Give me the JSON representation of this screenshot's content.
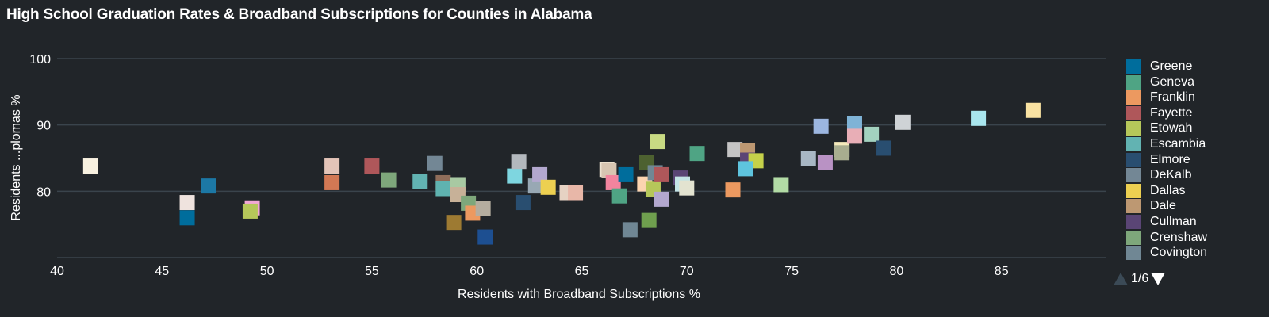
{
  "title": "High School Graduation Rates & Broadband Subscriptions for Counties in Alabama",
  "legend": {
    "items": [
      {
        "label": "Greene",
        "color": "#006d9c"
      },
      {
        "label": "Geneva",
        "color": "#4fa484"
      },
      {
        "label": "Franklin",
        "color": "#ec9960"
      },
      {
        "label": "Fayette",
        "color": "#af575a"
      },
      {
        "label": "Etowah",
        "color": "#b6c75a"
      },
      {
        "label": "Escambia",
        "color": "#62b3b2"
      },
      {
        "label": "Elmore",
        "color": "#294e70"
      },
      {
        "label": "DeKalb",
        "color": "#738795"
      },
      {
        "label": "Dallas",
        "color": "#edd051"
      },
      {
        "label": "Dale",
        "color": "#bd9872"
      },
      {
        "label": "Cullman",
        "color": "#5a4575"
      },
      {
        "label": "Crenshaw",
        "color": "#7ea77b"
      },
      {
        "label": "Covington",
        "color": "#708794"
      }
    ],
    "page_indicator": "1/6"
  },
  "chart_data": {
    "type": "scatter",
    "title": "High School Graduation Rates & Broadband Subscriptions for Counties in Alabama",
    "xlabel": "Residents with Broadband Subscriptions %",
    "ylabel": "Residents ...plomas %",
    "xlim": [
      40,
      90
    ],
    "ylim": [
      70,
      100
    ],
    "xticks": [
      "40",
      "45",
      "50",
      "55",
      "60",
      "65",
      "70",
      "75",
      "80",
      "85"
    ],
    "yticks": [
      "80",
      "90",
      "100"
    ],
    "grid": true,
    "legend_position": "right",
    "points": [
      {
        "x": 41.6,
        "y": 83.8,
        "color": "#f8f1e0"
      },
      {
        "x": 46.2,
        "y": 78.3,
        "color": "#efe3de"
      },
      {
        "x": 46.2,
        "y": 76.0,
        "color": "#006d9c"
      },
      {
        "x": 47.2,
        "y": 80.8,
        "color": "#1c78a5"
      },
      {
        "x": 49.3,
        "y": 77.5,
        "color": "#f2a7d5"
      },
      {
        "x": 49.2,
        "y": 77.0,
        "color": "#b6c75a"
      },
      {
        "x": 53.1,
        "y": 83.8,
        "color": "#e3c4b8"
      },
      {
        "x": 53.1,
        "y": 81.3,
        "color": "#d27854"
      },
      {
        "x": 55.0,
        "y": 83.8,
        "color": "#af575a"
      },
      {
        "x": 55.8,
        "y": 81.7,
        "color": "#7ea77b"
      },
      {
        "x": 57.3,
        "y": 81.5,
        "color": "#62b3b2"
      },
      {
        "x": 58.0,
        "y": 84.2,
        "color": "#738795"
      },
      {
        "x": 58.4,
        "y": 81.3,
        "color": "#8f6d5a"
      },
      {
        "x": 58.4,
        "y": 80.4,
        "color": "#5fb3b0"
      },
      {
        "x": 58.9,
        "y": 75.3,
        "color": "#9d7a32"
      },
      {
        "x": 59.1,
        "y": 81.0,
        "color": "#a8c9a2"
      },
      {
        "x": 59.1,
        "y": 79.5,
        "color": "#c7b198"
      },
      {
        "x": 59.6,
        "y": 78.2,
        "color": "#7ea77b"
      },
      {
        "x": 59.8,
        "y": 76.7,
        "color": "#ec9960"
      },
      {
        "x": 60.3,
        "y": 77.4,
        "color": "#b5ad9f"
      },
      {
        "x": 60.4,
        "y": 73.1,
        "color": "#1d4f91"
      },
      {
        "x": 61.8,
        "y": 82.3,
        "color": "#7ed6e0"
      },
      {
        "x": 62.0,
        "y": 84.5,
        "color": "#b3b8bd"
      },
      {
        "x": 62.2,
        "y": 78.3,
        "color": "#294e70"
      },
      {
        "x": 62.8,
        "y": 80.8,
        "color": "#98a8b4"
      },
      {
        "x": 63.0,
        "y": 82.5,
        "color": "#b3a8cf"
      },
      {
        "x": 63.4,
        "y": 80.6,
        "color": "#edd051"
      },
      {
        "x": 64.3,
        "y": 79.8,
        "color": "#e6d2c3"
      },
      {
        "x": 64.7,
        "y": 79.8,
        "color": "#e8b7a8"
      },
      {
        "x": 66.2,
        "y": 83.3,
        "color": "#ece2d0"
      },
      {
        "x": 66.3,
        "y": 83.1,
        "color": "#d7c5b1"
      },
      {
        "x": 66.5,
        "y": 81.3,
        "color": "#f2849e"
      },
      {
        "x": 67.1,
        "y": 82.5,
        "color": "#006d9c"
      },
      {
        "x": 66.8,
        "y": 79.3,
        "color": "#4fa484"
      },
      {
        "x": 67.3,
        "y": 74.2,
        "color": "#708794"
      },
      {
        "x": 68.0,
        "y": 81.1,
        "color": "#fcd4b0"
      },
      {
        "x": 68.1,
        "y": 84.4,
        "color": "#4d6130"
      },
      {
        "x": 68.2,
        "y": 75.6,
        "color": "#6f9f4e"
      },
      {
        "x": 68.4,
        "y": 80.3,
        "color": "#b6c75a"
      },
      {
        "x": 68.6,
        "y": 87.5,
        "color": "#c8da83"
      },
      {
        "x": 68.5,
        "y": 82.8,
        "color": "#708794"
      },
      {
        "x": 68.8,
        "y": 82.5,
        "color": "#af575a"
      },
      {
        "x": 68.8,
        "y": 78.8,
        "color": "#b3a8cf"
      },
      {
        "x": 69.7,
        "y": 82.0,
        "color": "#5a4575"
      },
      {
        "x": 69.8,
        "y": 81.1,
        "color": "#c4e4e6"
      },
      {
        "x": 70.0,
        "y": 80.5,
        "color": "#e3e3d0"
      },
      {
        "x": 70.5,
        "y": 85.7,
        "color": "#4fa484"
      },
      {
        "x": 72.2,
        "y": 80.2,
        "color": "#ec9960"
      },
      {
        "x": 72.3,
        "y": 86.3,
        "color": "#c4c4c4"
      },
      {
        "x": 72.9,
        "y": 86.1,
        "color": "#bd9872"
      },
      {
        "x": 72.9,
        "y": 84.7,
        "color": "#5a4575"
      },
      {
        "x": 73.3,
        "y": 84.6,
        "color": "#c5d14a"
      },
      {
        "x": 72.8,
        "y": 83.4,
        "color": "#5ec4de"
      },
      {
        "x": 74.5,
        "y": 81.0,
        "color": "#b2dba5"
      },
      {
        "x": 75.8,
        "y": 84.9,
        "color": "#a8b7c4"
      },
      {
        "x": 76.4,
        "y": 89.8,
        "color": "#9cb6e0"
      },
      {
        "x": 76.6,
        "y": 84.4,
        "color": "#b992c4"
      },
      {
        "x": 77.4,
        "y": 86.3,
        "color": "#f5eabc"
      },
      {
        "x": 77.4,
        "y": 85.8,
        "color": "#a8ad8f"
      },
      {
        "x": 78.0,
        "y": 90.2,
        "color": "#7fb3d6"
      },
      {
        "x": 78.0,
        "y": 88.3,
        "color": "#e8aeb6"
      },
      {
        "x": 78.8,
        "y": 88.6,
        "color": "#a3d2bf"
      },
      {
        "x": 79.4,
        "y": 86.5,
        "color": "#294e70"
      },
      {
        "x": 80.3,
        "y": 90.4,
        "color": "#cfd3d6"
      },
      {
        "x": 83.9,
        "y": 91.0,
        "color": "#a9e6ee"
      },
      {
        "x": 86.5,
        "y": 92.2,
        "color": "#f9e2a2"
      }
    ]
  }
}
